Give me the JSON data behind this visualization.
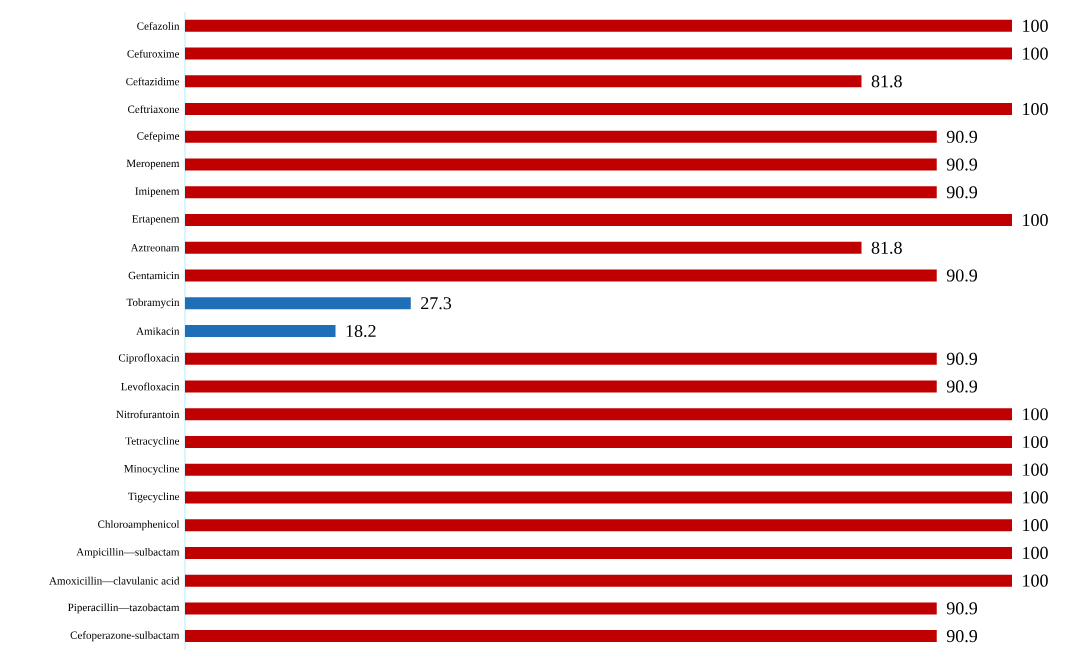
{
  "chart_data": {
    "type": "bar",
    "orientation": "horizontal",
    "categories": [
      "Cefazolin",
      "Cefuroxime",
      "Ceftazidime",
      "Ceftriaxone",
      "Cefepime",
      "Meropenem",
      "Imipenem",
      "Ertapenem",
      "Aztreonam",
      "Gentamicin",
      "Tobramycin",
      "Amikacin",
      "Ciprofloxacin",
      "Levofloxacin",
      "Nitrofurantoin",
      "Tetracycline",
      "Minocycline",
      "Tigecycline",
      "Chloroamphenicol",
      "Ampicillin—sulbactam",
      "Amoxicillin—clavulanic acid",
      "Piperacillin—tazobactam",
      "Cefoperazone-sulbactam"
    ],
    "values": [
      100,
      100,
      81.8,
      100,
      90.9,
      90.9,
      90.9,
      100,
      81.8,
      90.9,
      27.3,
      18.2,
      90.9,
      90.9,
      100,
      100,
      100,
      100,
      100,
      100,
      100,
      90.9,
      90.9
    ],
    "colors": [
      "#c00000",
      "#c00000",
      "#c00000",
      "#c00000",
      "#c00000",
      "#c00000",
      "#c00000",
      "#c00000",
      "#c00000",
      "#c00000",
      "#1f6fb8",
      "#1f6fb8",
      "#c00000",
      "#c00000",
      "#c00000",
      "#c00000",
      "#c00000",
      "#c00000",
      "#c00000",
      "#c00000",
      "#c00000",
      "#c00000",
      "#c00000"
    ],
    "data_labels": true,
    "tick_labels": "y"
  }
}
